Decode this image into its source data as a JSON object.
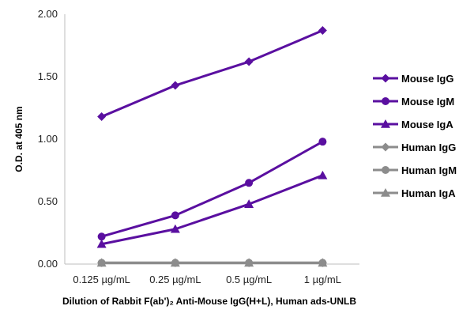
{
  "chart_data": {
    "type": "line",
    "categories": [
      "0.125 µg/mL",
      "0.25 µg/mL",
      "0.5 µg/mL",
      "1 µg/mL"
    ],
    "ylabel": "O.D. at 405 nm",
    "xlabel": "Dilution of Rabbit F(ab')₂ Anti-Mouse IgG(H+L), Human ads-UNLB",
    "ylim": [
      0,
      2.0
    ],
    "yticks": [
      "0.00",
      "0.50",
      "1.00",
      "1.50",
      "2.00"
    ],
    "grid": false,
    "legend_position": "right",
    "series": [
      {
        "name": "Mouse IgG",
        "values": [
          1.18,
          1.43,
          1.62,
          1.87
        ],
        "color": "#5a0fa0",
        "marker": "diamond"
      },
      {
        "name": "Mouse IgM",
        "values": [
          0.22,
          0.39,
          0.65,
          0.98
        ],
        "color": "#5a0fa0",
        "marker": "circle"
      },
      {
        "name": "Mouse IgA",
        "values": [
          0.16,
          0.28,
          0.48,
          0.71
        ],
        "color": "#5a0fa0",
        "marker": "triangle"
      },
      {
        "name": "Human IgG",
        "values": [
          0.01,
          0.01,
          0.01,
          0.01
        ],
        "color": "#8c8c8c",
        "marker": "diamond"
      },
      {
        "name": "Human IgM",
        "values": [
          0.01,
          0.01,
          0.01,
          0.01
        ],
        "color": "#8c8c8c",
        "marker": "circle"
      },
      {
        "name": "Human IgA",
        "values": [
          0.01,
          0.01,
          0.01,
          0.01
        ],
        "color": "#8c8c8c",
        "marker": "triangle"
      }
    ]
  }
}
